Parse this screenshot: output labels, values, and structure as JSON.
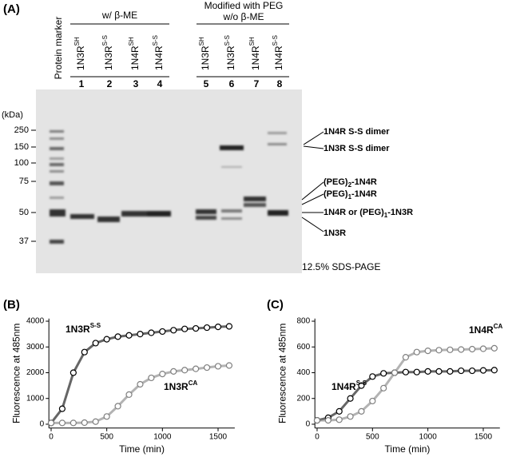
{
  "panel_a": {
    "letter": "(A)",
    "marker_label": "Protein marker",
    "group1": "w/ β-ME",
    "group2_line1": "Modified with PEG",
    "group2_line2": "w/o β-ME",
    "lanes": [
      {
        "name": "1N3R",
        "sup": "SH",
        "number": "1"
      },
      {
        "name": "1N3R",
        "sup": "S-S",
        "number": "2"
      },
      {
        "name": "1N4R",
        "sup": "SH",
        "number": "3"
      },
      {
        "name": "1N4R",
        "sup": "S-S",
        "number": "4"
      },
      {
        "name": "1N3R",
        "sup": "SH",
        "number": "5"
      },
      {
        "name": "1N3R",
        "sup": "S-S",
        "number": "6"
      },
      {
        "name": "1N4R",
        "sup": "SH",
        "number": "7"
      },
      {
        "name": "1N4R",
        "sup": "S-S",
        "number": "8"
      }
    ],
    "unit": "(kDa)",
    "mw": [
      "250",
      "150",
      "100",
      "75",
      "50",
      "37"
    ],
    "annotations": [
      {
        "text": "1N4R S-S dimer"
      },
      {
        "text": "1N3R S-S dimer"
      },
      {
        "text": "(PEG)",
        "sub": "2",
        "rest": "-1N4R"
      },
      {
        "text": "(PEG)",
        "sub": "1",
        "rest": "-1N4R"
      },
      {
        "text": "1N4R or (PEG)",
        "sub": "1",
        "rest": "-1N3R"
      },
      {
        "text": "1N3R"
      }
    ],
    "footer": "12.5% SDS-PAGE"
  },
  "chart_data": [
    {
      "type": "line",
      "panel": "(B)",
      "x_label": "Time (min)",
      "y_label": "Fluorescence at 485nm",
      "xlim": [
        -20,
        1650
      ],
      "ylim": [
        -150,
        4100
      ],
      "xticks": [
        0,
        500,
        1000,
        1500
      ],
      "yticks": [
        0,
        1000,
        2000,
        3000,
        4000
      ],
      "x": [
        0,
        100,
        200,
        300,
        400,
        500,
        600,
        700,
        800,
        900,
        1000,
        1100,
        1200,
        1300,
        1400,
        1500,
        1600
      ],
      "series": [
        {
          "name": "1N3R",
          "name_sup": "S-S",
          "color": "#000000",
          "values": [
            50,
            600,
            2000,
            2800,
            3150,
            3300,
            3400,
            3450,
            3500,
            3550,
            3600,
            3650,
            3700,
            3720,
            3750,
            3780,
            3800
          ]
        },
        {
          "name": "1N3R",
          "name_sup": "CA",
          "color": "#808080",
          "values": [
            50,
            50,
            50,
            60,
            100,
            300,
            700,
            1150,
            1550,
            1800,
            1950,
            2050,
            2100,
            2150,
            2200,
            2250,
            2280
          ]
        }
      ]
    },
    {
      "type": "line",
      "panel": "(C)",
      "x_label": "Time (min)",
      "y_label": "Fluorescence at 485nm",
      "xlim": [
        -20,
        1650
      ],
      "ylim": [
        -30,
        820
      ],
      "xticks": [
        0,
        500,
        1000,
        1500
      ],
      "yticks": [
        0,
        200,
        400,
        600,
        800
      ],
      "x": [
        0,
        100,
        200,
        300,
        400,
        500,
        600,
        700,
        800,
        900,
        1000,
        1100,
        1200,
        1300,
        1400,
        1500,
        1600
      ],
      "series": [
        {
          "name": "1N4R",
          "name_sup": "S-S",
          "color": "#000000",
          "values": [
            30,
            50,
            100,
            200,
            300,
            370,
            395,
            400,
            405,
            405,
            410,
            410,
            410,
            415,
            415,
            418,
            420
          ]
        },
        {
          "name": "1N4R",
          "name_sup": "CA",
          "color": "#808080",
          "values": [
            30,
            30,
            35,
            60,
            100,
            180,
            280,
            400,
            520,
            560,
            570,
            575,
            578,
            580,
            583,
            586,
            590
          ]
        }
      ]
    }
  ]
}
